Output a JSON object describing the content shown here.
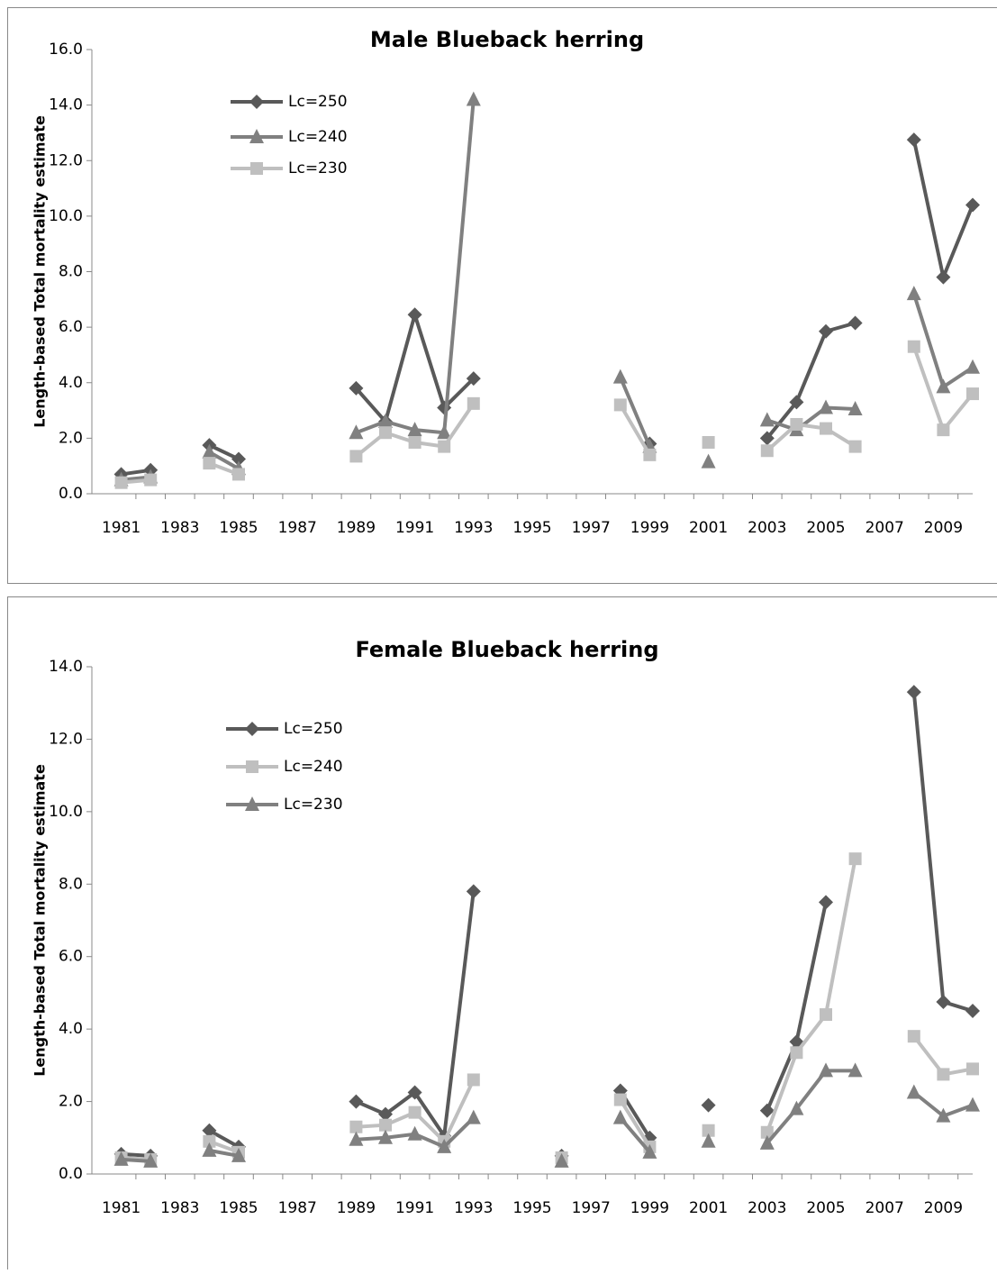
{
  "chart_data": [
    {
      "type": "line",
      "title": "Male Blueback herring",
      "y_label": "Length-based Total mortality estimate",
      "x": [
        1981,
        1982,
        1983,
        1984,
        1985,
        1986,
        1987,
        1988,
        1989,
        1990,
        1991,
        1992,
        1993,
        1994,
        1995,
        1996,
        1997,
        1998,
        1999,
        2000,
        2001,
        2002,
        2003,
        2004,
        2005,
        2006,
        2007,
        2008,
        2009,
        2010
      ],
      "xlim": [
        1980,
        2010
      ],
      "xticks": [
        1981,
        1983,
        1985,
        1987,
        1989,
        1991,
        1993,
        1995,
        1997,
        1999,
        2001,
        2003,
        2005,
        2007,
        2009
      ],
      "ylim": [
        0,
        16
      ],
      "yticks": [
        {
          "value": 0,
          "label": "0.0"
        },
        {
          "value": 2,
          "label": "2.0"
        },
        {
          "value": 4,
          "label": "4.0"
        },
        {
          "value": 6,
          "label": "6.0"
        },
        {
          "value": 8,
          "label": "8.0"
        },
        {
          "value": 10,
          "label": "10.0"
        },
        {
          "value": 12,
          "label": "12.0"
        },
        {
          "value": 14,
          "label": "14.0"
        },
        {
          "value": 16,
          "label": "16.0"
        }
      ],
      "series": [
        {
          "name": "Lc=250",
          "color": "#595959",
          "marker": "diamond",
          "values": [
            0.7,
            0.85,
            null,
            1.75,
            1.25,
            null,
            null,
            null,
            3.8,
            2.6,
            6.45,
            3.1,
            4.15,
            null,
            null,
            null,
            null,
            null,
            1.8,
            null,
            null,
            null,
            2.0,
            3.3,
            5.85,
            6.15,
            null,
            12.75,
            7.8,
            10.4
          ]
        },
        {
          "name": "Lc=240",
          "color": "#808080",
          "marker": "triangle",
          "values": [
            0.5,
            0.6,
            null,
            1.5,
            0.9,
            null,
            null,
            null,
            2.2,
            2.6,
            2.3,
            2.2,
            14.2,
            null,
            null,
            null,
            null,
            4.2,
            1.7,
            null,
            1.15,
            null,
            2.65,
            2.3,
            3.1,
            3.05,
            null,
            7.2,
            3.85,
            4.55
          ]
        },
        {
          "name": "Lc=230",
          "color": "#bfbfbf",
          "marker": "square",
          "values": [
            0.4,
            0.5,
            null,
            1.1,
            0.7,
            null,
            null,
            null,
            1.35,
            2.2,
            1.85,
            1.7,
            3.25,
            null,
            null,
            null,
            null,
            3.2,
            1.4,
            null,
            1.85,
            null,
            1.55,
            2.5,
            2.35,
            1.7,
            null,
            5.3,
            2.3,
            3.6
          ]
        }
      ]
    },
    {
      "type": "line",
      "title": "Female  Blueback herring",
      "y_label": "Length-based Total mortality estimate",
      "x": [
        1981,
        1982,
        1983,
        1984,
        1985,
        1986,
        1987,
        1988,
        1989,
        1990,
        1991,
        1992,
        1993,
        1994,
        1995,
        1996,
        1997,
        1998,
        1999,
        2000,
        2001,
        2002,
        2003,
        2004,
        2005,
        2006,
        2007,
        2008,
        2009,
        2010
      ],
      "xlim": [
        1980,
        2010
      ],
      "xticks": [
        1981,
        1983,
        1985,
        1987,
        1989,
        1991,
        1993,
        1995,
        1997,
        1999,
        2001,
        2003,
        2005,
        2007,
        2009
      ],
      "ylim": [
        0,
        14
      ],
      "yticks": [
        {
          "value": 0,
          "label": "0.0"
        },
        {
          "value": 2,
          "label": "2.0"
        },
        {
          "value": 4,
          "label": "4.0"
        },
        {
          "value": 6,
          "label": "6.0"
        },
        {
          "value": 8,
          "label": "8.0"
        },
        {
          "value": 10,
          "label": "10.0"
        },
        {
          "value": 12,
          "label": "12.0"
        },
        {
          "value": 14,
          "label": "14.0"
        }
      ],
      "series": [
        {
          "name": "Lc=250",
          "color": "#595959",
          "marker": "diamond",
          "values": [
            0.55,
            0.5,
            null,
            1.2,
            0.75,
            null,
            null,
            null,
            2.0,
            1.65,
            2.25,
            1.05,
            7.8,
            null,
            null,
            0.5,
            null,
            2.3,
            1.0,
            null,
            1.9,
            null,
            1.75,
            3.65,
            7.5,
            null,
            null,
            13.3,
            4.75,
            4.5
          ]
        },
        {
          "name": "Lc=240",
          "color": "#bfbfbf",
          "marker": "square",
          "values": [
            0.45,
            0.4,
            null,
            0.9,
            0.6,
            null,
            null,
            null,
            1.3,
            1.35,
            1.7,
            0.9,
            2.6,
            null,
            null,
            0.45,
            null,
            2.05,
            0.75,
            null,
            1.2,
            null,
            1.15,
            3.35,
            4.4,
            8.7,
            null,
            3.8,
            2.75,
            2.9
          ]
        },
        {
          "name": "Lc=230",
          "color": "#808080",
          "marker": "triangle",
          "values": [
            0.4,
            0.35,
            null,
            0.65,
            0.5,
            null,
            null,
            null,
            0.95,
            1.0,
            1.1,
            0.75,
            1.55,
            null,
            null,
            0.35,
            null,
            1.55,
            0.6,
            null,
            0.9,
            null,
            0.85,
            1.8,
            2.85,
            2.85,
            null,
            2.25,
            1.6,
            1.9
          ]
        }
      ]
    }
  ]
}
